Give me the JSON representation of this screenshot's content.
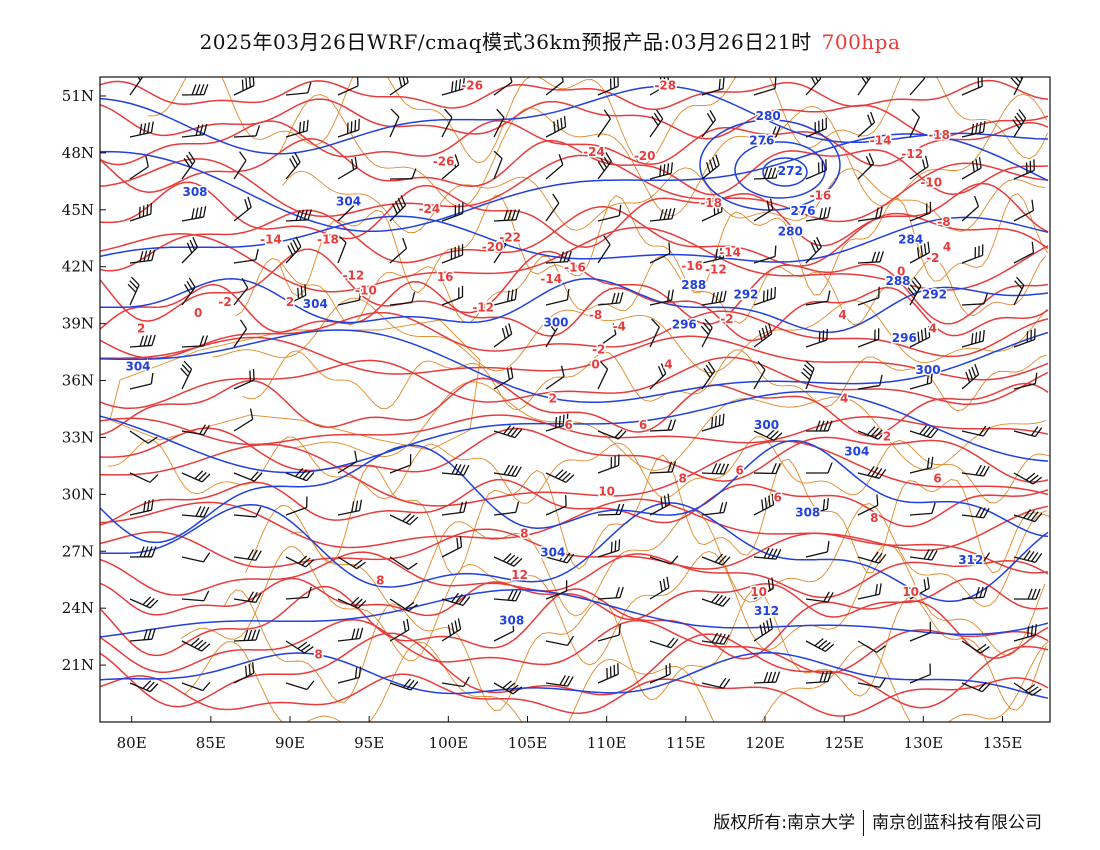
{
  "title": {
    "main": "2025年03月26日WRF/cmaq模式36km预报产品:03月26日21时",
    "level": "700hpa"
  },
  "colors": {
    "temperature_contour": "#e83c3c",
    "height_contour": "#2140e0",
    "border": "#e08a2a",
    "wind_barb": "#111111",
    "level_text": "#e83c3c"
  },
  "map": {
    "projection": "lat-lon",
    "lon_range": [
      78,
      138
    ],
    "lat_range": [
      18,
      52
    ],
    "lon_ticks": [
      80,
      85,
      90,
      95,
      100,
      105,
      110,
      115,
      120,
      125,
      130,
      135
    ],
    "lat_ticks": [
      21,
      24,
      27,
      30,
      33,
      36,
      39,
      42,
      45,
      48,
      51
    ],
    "lon_labels": [
      "80E",
      "85E",
      "90E",
      "95E",
      "100E",
      "105E",
      "110E",
      "115E",
      "120E",
      "125E",
      "130E",
      "135E"
    ],
    "lat_labels": [
      "21N",
      "24N",
      "27N",
      "30N",
      "33N",
      "36N",
      "39N",
      "42N",
      "45N",
      "48N",
      "51N"
    ]
  },
  "temperature_labels": [
    {
      "text": "-26",
      "lon": 101.5,
      "lat": 51.6
    },
    {
      "text": "-28",
      "lon": 113.7,
      "lat": 51.6
    },
    {
      "text": "-26",
      "lon": 99.7,
      "lat": 47.6
    },
    {
      "text": "-24",
      "lon": 109.2,
      "lat": 48.1
    },
    {
      "text": "-20",
      "lon": 112.4,
      "lat": 47.9
    },
    {
      "text": "-24",
      "lon": 98.8,
      "lat": 45.1
    },
    {
      "text": "-22",
      "lon": 103.9,
      "lat": 43.6
    },
    {
      "text": "-20",
      "lon": 102.8,
      "lat": 43.1
    },
    {
      "text": "-18",
      "lon": 92.4,
      "lat": 43.5
    },
    {
      "text": "-14",
      "lon": 88.8,
      "lat": 43.5
    },
    {
      "text": "-12",
      "lon": 94.0,
      "lat": 41.6
    },
    {
      "text": "-10",
      "lon": 94.8,
      "lat": 40.8
    },
    {
      "text": "-16",
      "lon": 108.0,
      "lat": 42.0
    },
    {
      "text": "-14",
      "lon": 106.5,
      "lat": 41.4
    },
    {
      "text": "16",
      "lon": 99.8,
      "lat": 41.5
    },
    {
      "text": "-12",
      "lon": 102.2,
      "lat": 39.9
    },
    {
      "text": "-18",
      "lon": 116.6,
      "lat": 45.4
    },
    {
      "text": "-16",
      "lon": 115.4,
      "lat": 42.1
    },
    {
      "text": "-12",
      "lon": 116.9,
      "lat": 41.9
    },
    {
      "text": "-14",
      "lon": 117.8,
      "lat": 42.8
    },
    {
      "text": "-16",
      "lon": 123.5,
      "lat": 45.8
    },
    {
      "text": "-14",
      "lon": 127.3,
      "lat": 48.7
    },
    {
      "text": "-12",
      "lon": 129.3,
      "lat": 48.0
    },
    {
      "text": "-18",
      "lon": 131.0,
      "lat": 49.0
    },
    {
      "text": "-10",
      "lon": 130.5,
      "lat": 46.5
    },
    {
      "text": "-8",
      "lon": 131.3,
      "lat": 44.4
    },
    {
      "text": "-2",
      "lon": 130.6,
      "lat": 42.5
    },
    {
      "text": "0",
      "lon": 128.6,
      "lat": 41.8
    },
    {
      "text": "4",
      "lon": 131.5,
      "lat": 43.1
    },
    {
      "text": "-8",
      "lon": 109.3,
      "lat": 39.5
    },
    {
      "text": "-4",
      "lon": 110.8,
      "lat": 38.9
    },
    {
      "text": "-2",
      "lon": 109.5,
      "lat": 37.7
    },
    {
      "text": "0",
      "lon": 109.3,
      "lat": 36.9
    },
    {
      "text": "2",
      "lon": 90.0,
      "lat": 40.2
    },
    {
      "text": "0",
      "lon": 84.2,
      "lat": 39.6
    },
    {
      "text": "-2",
      "lon": 85.9,
      "lat": 40.2
    },
    {
      "text": "2",
      "lon": 80.6,
      "lat": 38.8
    },
    {
      "text": "4",
      "lon": 113.9,
      "lat": 36.9
    },
    {
      "text": "2",
      "lon": 106.6,
      "lat": 35.1
    },
    {
      "text": "6",
      "lon": 107.6,
      "lat": 33.7
    },
    {
      "text": "6",
      "lon": 112.3,
      "lat": 33.7
    },
    {
      "text": "-2",
      "lon": 117.6,
      "lat": 39.3
    },
    {
      "text": "4",
      "lon": 125.0,
      "lat": 35.1
    },
    {
      "text": "4",
      "lon": 124.9,
      "lat": 39.5
    },
    {
      "text": "2",
      "lon": 127.7,
      "lat": 33.1
    },
    {
      "text": "4",
      "lon": 130.6,
      "lat": 38.8
    },
    {
      "text": "6",
      "lon": 118.4,
      "lat": 31.3
    },
    {
      "text": "8",
      "lon": 114.8,
      "lat": 30.9
    },
    {
      "text": "10",
      "lon": 110.0,
      "lat": 30.2
    },
    {
      "text": "6",
      "lon": 130.9,
      "lat": 30.9
    },
    {
      "text": "8",
      "lon": 126.9,
      "lat": 28.8
    },
    {
      "text": "6",
      "lon": 120.8,
      "lat": 29.9
    },
    {
      "text": "8",
      "lon": 95.7,
      "lat": 25.5
    },
    {
      "text": "12",
      "lon": 104.5,
      "lat": 25.8
    },
    {
      "text": "10",
      "lon": 119.6,
      "lat": 24.9
    },
    {
      "text": "10",
      "lon": 129.2,
      "lat": 24.9
    },
    {
      "text": "8",
      "lon": 91.8,
      "lat": 21.6
    },
    {
      "text": "8",
      "lon": 104.8,
      "lat": 28.0
    }
  ],
  "height_labels": [
    {
      "text": "280",
      "lon": 120.2,
      "lat": 50.0
    },
    {
      "text": "276",
      "lon": 119.8,
      "lat": 48.7
    },
    {
      "text": "272",
      "lon": 121.6,
      "lat": 47.1
    },
    {
      "text": "276",
      "lon": 122.4,
      "lat": 45.0
    },
    {
      "text": "280",
      "lon": 121.6,
      "lat": 43.9
    },
    {
      "text": "284",
      "lon": 129.2,
      "lat": 43.5
    },
    {
      "text": "288",
      "lon": 115.5,
      "lat": 41.1
    },
    {
      "text": "292",
      "lon": 118.8,
      "lat": 40.6
    },
    {
      "text": "288",
      "lon": 128.4,
      "lat": 41.3
    },
    {
      "text": "292",
      "lon": 130.7,
      "lat": 40.6
    },
    {
      "text": "296",
      "lon": 114.9,
      "lat": 39.0
    },
    {
      "text": "296",
      "lon": 128.8,
      "lat": 38.3
    },
    {
      "text": "300",
      "lon": 130.3,
      "lat": 36.6
    },
    {
      "text": "300",
      "lon": 106.8,
      "lat": 39.1
    },
    {
      "text": "300",
      "lon": 120.1,
      "lat": 33.7
    },
    {
      "text": "304",
      "lon": 125.8,
      "lat": 32.3
    },
    {
      "text": "308",
      "lon": 122.7,
      "lat": 29.1
    },
    {
      "text": "308",
      "lon": 84.0,
      "lat": 46.0
    },
    {
      "text": "304",
      "lon": 93.7,
      "lat": 45.5
    },
    {
      "text": "304",
      "lon": 91.6,
      "lat": 40.1
    },
    {
      "text": "304",
      "lon": 80.4,
      "lat": 36.8
    },
    {
      "text": "304",
      "lon": 106.6,
      "lat": 27.0
    },
    {
      "text": "308",
      "lon": 104.0,
      "lat": 23.4
    },
    {
      "text": "312",
      "lon": 120.1,
      "lat": 23.9
    },
    {
      "text": "312",
      "lon": 133.0,
      "lat": 26.6
    }
  ],
  "footer": {
    "left": "版权所有:南京大学",
    "right": "南京创蓝科技有限公司"
  }
}
